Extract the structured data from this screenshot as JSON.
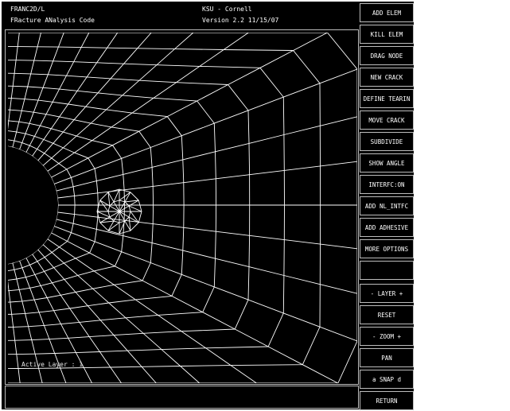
{
  "header": {
    "app_name": "FRANC2D/L",
    "app_subtitle": "FRacture ANalysis Code",
    "institution": "KSU - Cornell",
    "version": "Version  2.2 11/15/07"
  },
  "canvas": {
    "active_layer_text": "Active Layer :  1"
  },
  "sidebar": {
    "buttons": [
      {
        "label": "ADD ELEM"
      },
      {
        "label": "KILL ELEM"
      },
      {
        "label": "DRAG NODE"
      },
      {
        "label": "NEW CRACK"
      },
      {
        "label": "DEFINE TEARIN"
      },
      {
        "label": "MOVE CRACK"
      },
      {
        "label": "SUBDIVIDE"
      },
      {
        "label": "SHOW ANGLE"
      },
      {
        "label": "INTERFC:ON"
      },
      {
        "label": "ADD NL_INTFC"
      },
      {
        "label": "ADD ADHESIVE"
      },
      {
        "label": "MORE OPTIONS"
      },
      {
        "label": ""
      },
      {
        "label": "- LAYER +"
      },
      {
        "label": "RESET"
      },
      {
        "label": "- ZOOM +"
      },
      {
        "label": "PAN"
      },
      {
        "label": "a SNAP d"
      },
      {
        "label": "RETURN"
      }
    ]
  },
  "colors": {
    "background": "#000000",
    "mesh_lines": "#ffffff",
    "frame": "#bdbdbd",
    "page": "#ffffff"
  }
}
